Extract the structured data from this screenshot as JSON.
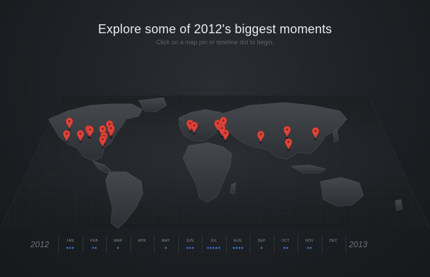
{
  "header": {
    "title": "Explore some of 2012's biggest moments",
    "subtitle": "Click on a map pin or timeline dot to begin."
  },
  "timeline": {
    "start_year": "2012",
    "end_year": "2013",
    "months": [
      {
        "label": "JAN",
        "dots": 3
      },
      {
        "label": "FEB",
        "dots": 2
      },
      {
        "label": "MAR",
        "dots": 1
      },
      {
        "label": "APR",
        "dots": 0
      },
      {
        "label": "MAY",
        "dots": 1
      },
      {
        "label": "JUN",
        "dots": 3
      },
      {
        "label": "JUL",
        "dots": 5
      },
      {
        "label": "AUG",
        "dots": 4
      },
      {
        "label": "SEP",
        "dots": 1
      },
      {
        "label": "OCT",
        "dots": 2
      },
      {
        "label": "NOV",
        "dots": 2
      },
      {
        "label": "DEC",
        "dots": 0
      }
    ]
  },
  "map": {
    "pin_count": 21
  },
  "colors": {
    "pin": "#e0443a",
    "dot": "#4f8fe8",
    "land": "#3a3e43",
    "background": "#1c1f23"
  }
}
